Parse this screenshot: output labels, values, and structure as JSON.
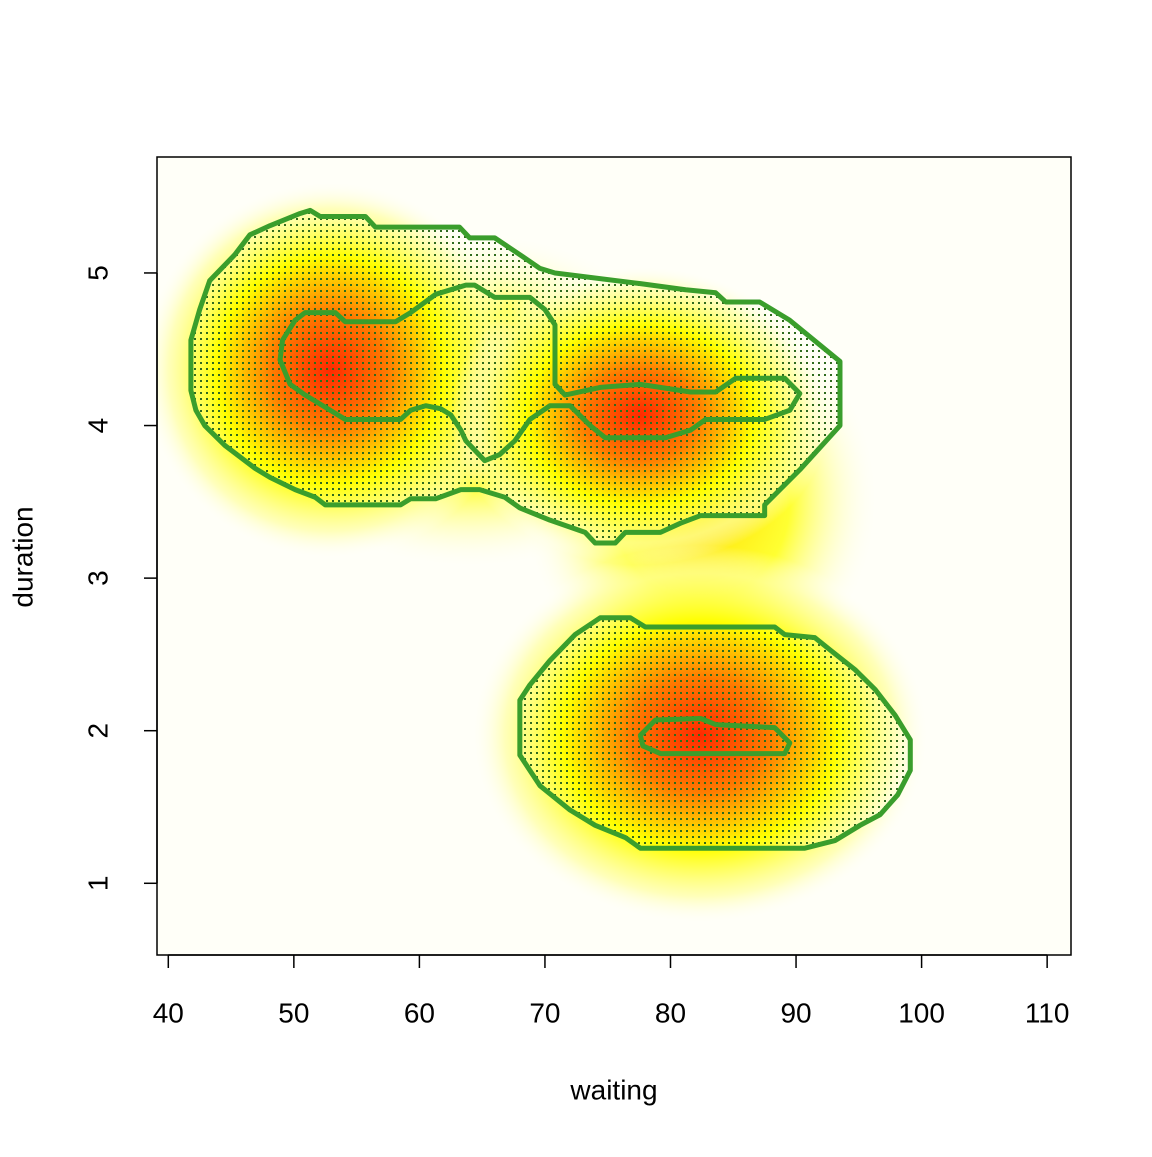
{
  "chart_data": {
    "type": "contour",
    "x_label": "waiting",
    "y_label": "duration",
    "xlim": [
      39.1,
      111.9
    ],
    "ylim": [
      0.53,
      5.76
    ],
    "xticks": [
      40,
      50,
      60,
      70,
      80,
      90,
      100,
      110
    ],
    "yticks": [
      1,
      2,
      3,
      4,
      5
    ],
    "series": [
      {
        "color": "#3a9e2c",
        "filled": true,
        "x": [
          51.3,
          52.1,
          55.7,
          56.5,
          63.2,
          64.0,
          66.0,
          68.0,
          69.6,
          70.8,
          77.6,
          81.2,
          83.6,
          84.4,
          87.1,
          89.5,
          93.5,
          93.5,
          90.3,
          87.5,
          87.5,
          82.4,
          80.8,
          79.2,
          76.4,
          75.6,
          74.0,
          73.2,
          70.4,
          68.0,
          66.8,
          64.8,
          63.3,
          61.3,
          59.3,
          58.5,
          52.5,
          51.7,
          50.1,
          48.1,
          46.9,
          44.5,
          42.9,
          42.2,
          41.8,
          41.8,
          42.5,
          43.3,
          45.3,
          46.5,
          48.1,
          50.5
        ],
        "y": [
          5.41,
          5.37,
          5.37,
          5.3,
          5.3,
          5.23,
          5.23,
          5.12,
          5.03,
          5.0,
          4.93,
          4.89,
          4.87,
          4.81,
          4.81,
          4.69,
          4.42,
          4.0,
          3.71,
          3.48,
          3.41,
          3.41,
          3.36,
          3.3,
          3.3,
          3.23,
          3.23,
          3.3,
          3.38,
          3.46,
          3.53,
          3.58,
          3.58,
          3.52,
          3.52,
          3.48,
          3.48,
          3.53,
          3.58,
          3.66,
          3.72,
          3.87,
          4.0,
          4.1,
          4.23,
          4.56,
          4.76,
          4.95,
          5.12,
          5.25,
          5.31,
          5.39
        ]
      },
      {
        "color": "#3a9e2c",
        "filled": true,
        "x": [
          74.4,
          76.8,
          78.0,
          88.3,
          89.1,
          91.5,
          92.7,
          94.7,
          96.3,
          97.9,
          99.1,
          99.1,
          98.1,
          96.7,
          95.1,
          93.1,
          90.7,
          77.6,
          76.4,
          74.0,
          72.0,
          69.6,
          68.0,
          68.0,
          68.8,
          70.4,
          72.4
        ],
        "y": [
          2.74,
          2.74,
          2.68,
          2.68,
          2.63,
          2.61,
          2.53,
          2.4,
          2.27,
          2.1,
          1.94,
          1.74,
          1.58,
          1.45,
          1.38,
          1.28,
          1.23,
          1.23,
          1.3,
          1.38,
          1.48,
          1.64,
          1.84,
          2.2,
          2.3,
          2.46,
          2.63
        ]
      },
      {
        "color": "#3a9e2c",
        "filled": false,
        "x": [
          50.9,
          53.3,
          54.1,
          58.1,
          59.3,
          61.3,
          63.7,
          64.4,
          66.0,
          68.8,
          70.0,
          70.8,
          70.8,
          71.6,
          74.4,
          77.6,
          81.6,
          83.6,
          85.2,
          89.1,
          90.3,
          89.5,
          87.5,
          82.8,
          81.6,
          79.6,
          74.8,
          73.6,
          72.0,
          70.4,
          68.8,
          67.6,
          66.4,
          65.2,
          63.7,
          63.3,
          62.5,
          61.7,
          60.5,
          59.3,
          58.5,
          54.1,
          52.9,
          50.9,
          49.7,
          48.9,
          49.1,
          50.1
        ],
        "y": [
          4.74,
          4.74,
          4.68,
          4.68,
          4.74,
          4.86,
          4.92,
          4.92,
          4.84,
          4.84,
          4.76,
          4.66,
          4.27,
          4.2,
          4.25,
          4.27,
          4.22,
          4.22,
          4.31,
          4.31,
          4.21,
          4.1,
          4.04,
          4.04,
          3.97,
          3.92,
          3.92,
          4.0,
          4.13,
          4.13,
          4.04,
          3.9,
          3.81,
          3.77,
          3.9,
          3.97,
          4.07,
          4.11,
          4.13,
          4.1,
          4.04,
          4.04,
          4.1,
          4.2,
          4.27,
          4.43,
          4.56,
          4.69
        ]
      },
      {
        "color": "#3a9e2c",
        "filled": false,
        "x": [
          78.8,
          82.4,
          83.6,
          88.3,
          89.5,
          89.1,
          79.2,
          77.8,
          77.6
        ],
        "y": [
          2.07,
          2.08,
          2.04,
          2.02,
          1.92,
          1.85,
          1.85,
          1.9,
          1.97
        ]
      }
    ]
  }
}
